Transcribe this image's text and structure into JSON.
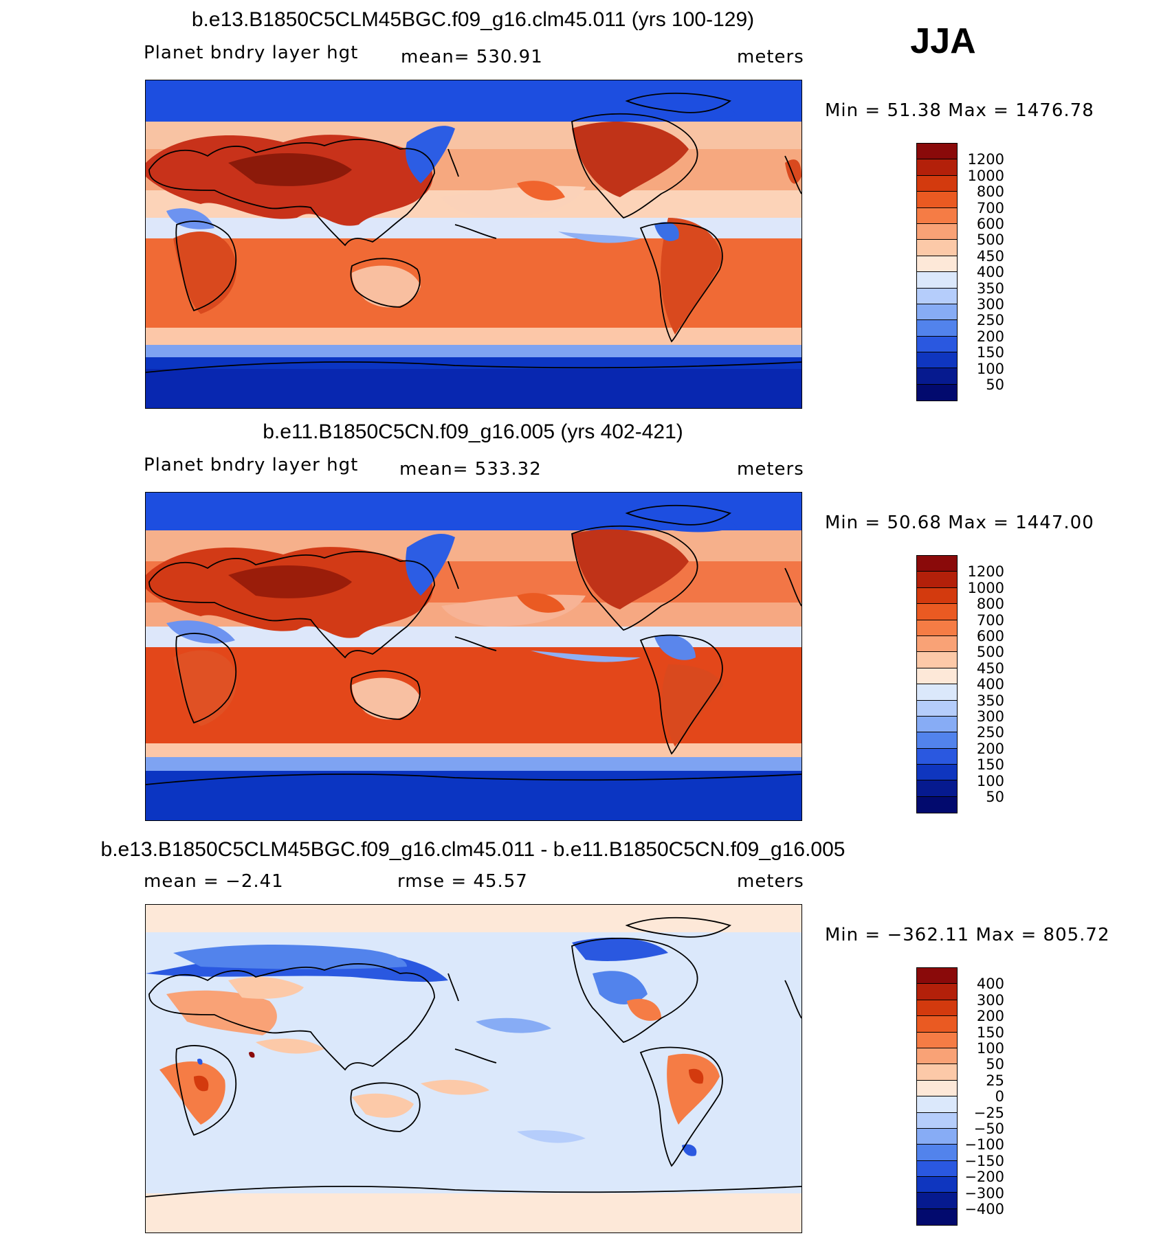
{
  "season": "JJA",
  "panels": [
    {
      "title": "b.e13.B1850C5CLM45BGC.f09_g16.clm45.011 (yrs 100-129)",
      "left_label": "Planet bndry layer hgt",
      "center_label": "mean= 530.91",
      "units": "meters",
      "minmax": "Min =   51.38 Max = 1476.78",
      "colorbar": {
        "labels": [
          "1200",
          "1000",
          "800",
          "700",
          "600",
          "500",
          "450",
          "400",
          "350",
          "300",
          "250",
          "200",
          "150",
          "100",
          "50"
        ],
        "colors": [
          "#8a0a0a",
          "#b3200a",
          "#d33a0e",
          "#ea5a22",
          "#f57c45",
          "#f9a276",
          "#fcc9a8",
          "#fde8d8",
          "#dbe8fb",
          "#b5cdfb",
          "#87acf5",
          "#5283ec",
          "#2a58e0",
          "#0f36bf",
          "#061a8f",
          "#020a6e"
        ]
      }
    },
    {
      "title": "b.e11.B1850C5CN.f09_g16.005 (yrs 402-421)",
      "left_label": "Planet bndry layer hgt",
      "center_label": "mean= 533.32",
      "units": "meters",
      "minmax": "Min =   50.68 Max = 1447.00",
      "colorbar": {
        "labels": [
          "1200",
          "1000",
          "800",
          "700",
          "600",
          "500",
          "450",
          "400",
          "350",
          "300",
          "250",
          "200",
          "150",
          "100",
          "50"
        ],
        "colors": [
          "#8a0a0a",
          "#b3200a",
          "#d33a0e",
          "#ea5a22",
          "#f57c45",
          "#f9a276",
          "#fcc9a8",
          "#fde8d8",
          "#dbe8fb",
          "#b5cdfb",
          "#87acf5",
          "#5283ec",
          "#2a58e0",
          "#0f36bf",
          "#061a8f",
          "#020a6e"
        ]
      }
    },
    {
      "title": "b.e13.B1850C5CLM45BGC.f09_g16.clm45.011 - b.e11.B1850C5CN.f09_g16.005",
      "left_label": "mean =   −2.41",
      "center_label": "rmse =   45.57",
      "units": "meters",
      "minmax": "Min = −362.11 Max =  805.72",
      "colorbar": {
        "labels": [
          "400",
          "300",
          "200",
          "150",
          "100",
          "50",
          "25",
          "0",
          "−25",
          "−50",
          "−100",
          "−150",
          "−200",
          "−300",
          "−400"
        ],
        "colors": [
          "#8a0a0a",
          "#b3200a",
          "#d33a0e",
          "#ea5a22",
          "#f57c45",
          "#f9a276",
          "#fcc9a8",
          "#fde8d8",
          "#dbe8fb",
          "#b5cdfb",
          "#87acf5",
          "#5283ec",
          "#2a58e0",
          "#0f36bf",
          "#061a8f",
          "#020a6e"
        ]
      }
    }
  ]
}
